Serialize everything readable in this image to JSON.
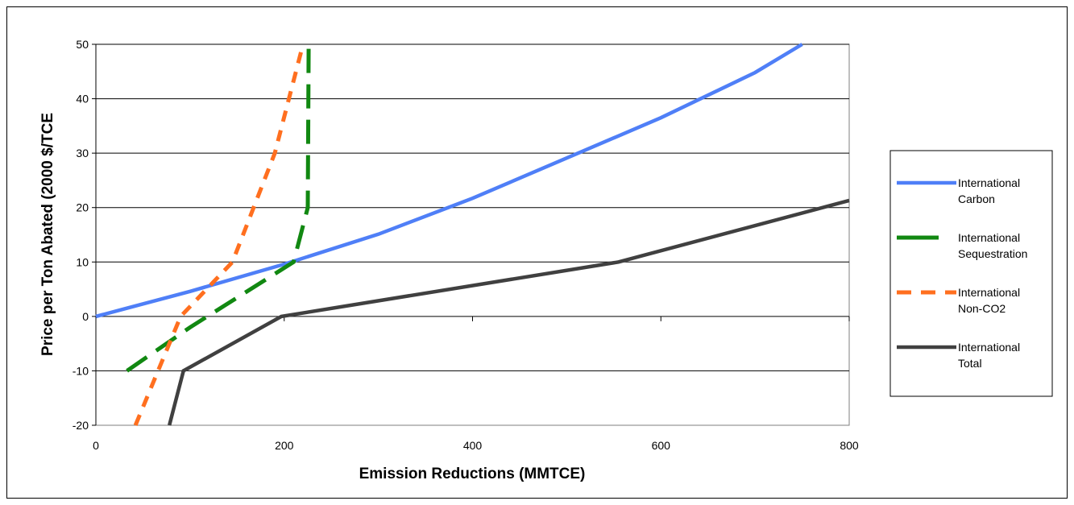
{
  "chart_data": {
    "type": "line",
    "title": "",
    "xlabel": "Emission Reductions (MMTCE)",
    "ylabel": "Price per Ton Abated (2000 $/TCE",
    "xlim": [
      0,
      800
    ],
    "ylim": [
      -20,
      50
    ],
    "x_ticks": [
      0,
      200,
      400,
      600,
      800
    ],
    "y_ticks": [
      -20,
      -10,
      0,
      10,
      20,
      30,
      40,
      50
    ],
    "grid": "horizontal",
    "legend_position": "right",
    "series": [
      {
        "name": "International Carbon",
        "color": "#4f7ff7",
        "dash": "solid",
        "x": [
          0,
          100,
          200,
          300,
          400,
          500,
          600,
          700,
          750
        ],
        "y": [
          0,
          4.6,
          9.6,
          15.1,
          21.7,
          29.1,
          36.5,
          44.8,
          50
        ]
      },
      {
        "name": "International Sequestration",
        "color": "#118811",
        "dash": "long-dash",
        "x": [
          33,
          100,
          210,
          225,
          226
        ],
        "y": [
          -10,
          -2,
          10,
          20,
          50
        ]
      },
      {
        "name": "International Non-CO2",
        "color": "#ff6f1f",
        "dash": "short-dash",
        "x": [
          42,
          90,
          145,
          190,
          220
        ],
        "y": [
          -20,
          0,
          10,
          30,
          50
        ]
      },
      {
        "name": "International Total",
        "color": "#404040",
        "dash": "solid",
        "x": [
          78,
          93,
          197,
          555,
          800
        ],
        "y": [
          -20,
          -10,
          0,
          10,
          21.3
        ]
      }
    ],
    "legend_entries": [
      {
        "line1": "International",
        "line2": "Carbon"
      },
      {
        "line1": "International",
        "line2": "Sequestration"
      },
      {
        "line1": "International",
        "line2": "Non-CO2"
      },
      {
        "line1": "International",
        "line2": "Total"
      }
    ]
  }
}
